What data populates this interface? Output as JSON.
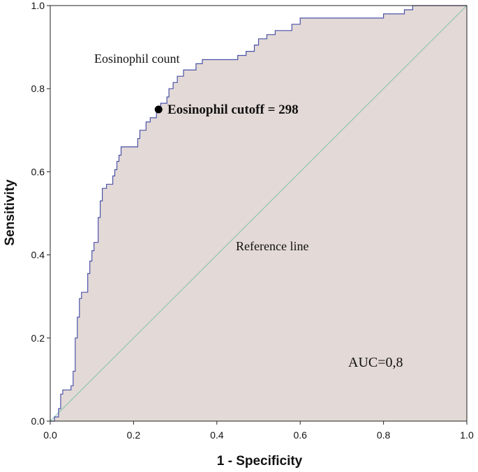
{
  "chart_data": {
    "type": "line",
    "title": "",
    "xlabel": "1 - Specificity",
    "ylabel": "Sensitivity",
    "xlim": [
      0,
      1
    ],
    "ylim": [
      0,
      1
    ],
    "x_ticks": [
      "0.0",
      "0.2",
      "0.4",
      "0.6",
      "0.8",
      "1.0"
    ],
    "y_ticks": [
      "0.0",
      "0.2",
      "0.4",
      "0.6",
      "0.8",
      "1.0"
    ],
    "grid": false,
    "colors": {
      "roc_line": "#4a52a8",
      "roc_fill": "#e3d9d6",
      "reference_line": "#7fc4a9",
      "cutoff_marker": "#000000"
    },
    "series": [
      {
        "name": "Eosinophil count",
        "points": [
          [
            0.0,
            0.0
          ],
          [
            0.01,
            0.0
          ],
          [
            0.01,
            0.01
          ],
          [
            0.02,
            0.01
          ],
          [
            0.02,
            0.03
          ],
          [
            0.025,
            0.03
          ],
          [
            0.025,
            0.065
          ],
          [
            0.03,
            0.065
          ],
          [
            0.03,
            0.075
          ],
          [
            0.05,
            0.075
          ],
          [
            0.05,
            0.085
          ],
          [
            0.055,
            0.085
          ],
          [
            0.055,
            0.12
          ],
          [
            0.06,
            0.12
          ],
          [
            0.06,
            0.2
          ],
          [
            0.065,
            0.2
          ],
          [
            0.065,
            0.25
          ],
          [
            0.07,
            0.25
          ],
          [
            0.07,
            0.295
          ],
          [
            0.075,
            0.295
          ],
          [
            0.075,
            0.31
          ],
          [
            0.09,
            0.31
          ],
          [
            0.09,
            0.355
          ],
          [
            0.095,
            0.355
          ],
          [
            0.095,
            0.385
          ],
          [
            0.1,
            0.385
          ],
          [
            0.1,
            0.41
          ],
          [
            0.105,
            0.41
          ],
          [
            0.105,
            0.43
          ],
          [
            0.115,
            0.43
          ],
          [
            0.115,
            0.49
          ],
          [
            0.12,
            0.49
          ],
          [
            0.12,
            0.53
          ],
          [
            0.125,
            0.53
          ],
          [
            0.125,
            0.56
          ],
          [
            0.135,
            0.56
          ],
          [
            0.135,
            0.57
          ],
          [
            0.15,
            0.57
          ],
          [
            0.15,
            0.59
          ],
          [
            0.155,
            0.59
          ],
          [
            0.155,
            0.605
          ],
          [
            0.16,
            0.605
          ],
          [
            0.16,
            0.625
          ],
          [
            0.165,
            0.625
          ],
          [
            0.165,
            0.64
          ],
          [
            0.17,
            0.64
          ],
          [
            0.17,
            0.66
          ],
          [
            0.21,
            0.66
          ],
          [
            0.21,
            0.68
          ],
          [
            0.215,
            0.68
          ],
          [
            0.215,
            0.7
          ],
          [
            0.23,
            0.7
          ],
          [
            0.23,
            0.72
          ],
          [
            0.24,
            0.72
          ],
          [
            0.24,
            0.73
          ],
          [
            0.255,
            0.73
          ],
          [
            0.255,
            0.75
          ],
          [
            0.265,
            0.75
          ],
          [
            0.265,
            0.765
          ],
          [
            0.28,
            0.765
          ],
          [
            0.28,
            0.78
          ],
          [
            0.285,
            0.78
          ],
          [
            0.285,
            0.8
          ],
          [
            0.295,
            0.8
          ],
          [
            0.295,
            0.815
          ],
          [
            0.305,
            0.815
          ],
          [
            0.305,
            0.83
          ],
          [
            0.32,
            0.83
          ],
          [
            0.32,
            0.845
          ],
          [
            0.35,
            0.845
          ],
          [
            0.35,
            0.86
          ],
          [
            0.365,
            0.86
          ],
          [
            0.365,
            0.87
          ],
          [
            0.45,
            0.87
          ],
          [
            0.45,
            0.88
          ],
          [
            0.47,
            0.88
          ],
          [
            0.47,
            0.89
          ],
          [
            0.49,
            0.89
          ],
          [
            0.49,
            0.905
          ],
          [
            0.5,
            0.905
          ],
          [
            0.5,
            0.92
          ],
          [
            0.52,
            0.92
          ],
          [
            0.52,
            0.93
          ],
          [
            0.54,
            0.93
          ],
          [
            0.54,
            0.94
          ],
          [
            0.58,
            0.94
          ],
          [
            0.58,
            0.955
          ],
          [
            0.6,
            0.955
          ],
          [
            0.6,
            0.97
          ],
          [
            0.8,
            0.97
          ],
          [
            0.8,
            0.98
          ],
          [
            0.85,
            0.98
          ],
          [
            0.85,
            0.99
          ],
          [
            0.87,
            0.99
          ],
          [
            0.87,
            1.0
          ],
          [
            1.0,
            1.0
          ]
        ]
      },
      {
        "name": "Reference line",
        "points": [
          [
            0,
            0
          ],
          [
            1,
            1
          ]
        ]
      }
    ],
    "annotations": [
      {
        "id": "series-label",
        "text": "Eosinophil count"
      },
      {
        "id": "cutoff",
        "text": "Eosinophil cutoff = 298",
        "x": 0.26,
        "y": 0.75
      },
      {
        "id": "reference-label",
        "text": "Reference line"
      },
      {
        "id": "auc",
        "text": "AUC=0,8"
      }
    ]
  }
}
